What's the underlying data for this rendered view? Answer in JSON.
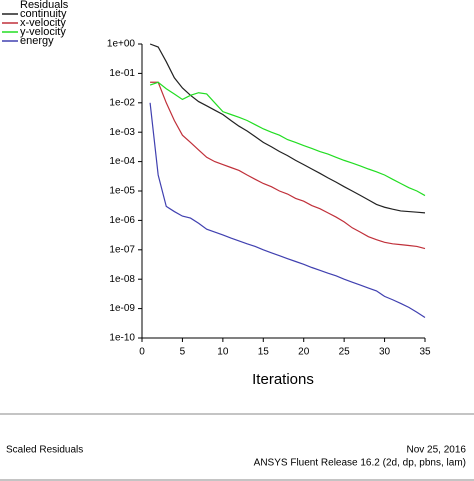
{
  "chart_data": {
    "type": "line",
    "legend_title": "Residuals",
    "legend": "upper left",
    "xlabel": "Iterations",
    "x": [
      1,
      2,
      3,
      4,
      5,
      6,
      7,
      8,
      9,
      10,
      11,
      12,
      13,
      14,
      15,
      16,
      17,
      18,
      19,
      20,
      21,
      22,
      23,
      24,
      25,
      26,
      27,
      28,
      29,
      30,
      31,
      32,
      33,
      34,
      35
    ],
    "xlim": [
      0,
      35
    ],
    "xticks": [
      0,
      5,
      10,
      15,
      20,
      25,
      30,
      35
    ],
    "ylog": true,
    "ylim": [
      1e-10,
      1
    ],
    "yticks": [
      {
        "value": 1e-10,
        "label": "1e-10"
      },
      {
        "value": 1e-09,
        "label": "1e-09"
      },
      {
        "value": 1e-08,
        "label": "1e-08"
      },
      {
        "value": 1e-07,
        "label": "1e-07"
      },
      {
        "value": 1e-06,
        "label": "1e-06"
      },
      {
        "value": 1e-05,
        "label": "1e-05"
      },
      {
        "value": 0.0001,
        "label": "1e-04"
      },
      {
        "value": 0.001,
        "label": "1e-03"
      },
      {
        "value": 0.01,
        "label": "1e-02"
      },
      {
        "value": 0.1,
        "label": "1e-01"
      },
      {
        "value": 1,
        "label": "1e+00"
      }
    ],
    "series": [
      {
        "name": "continuity",
        "color": "#222222",
        "values": [
          1,
          0.79,
          0.25,
          0.071,
          0.032,
          0.018,
          0.011,
          0.0079,
          0.0056,
          0.004,
          0.0025,
          0.0016,
          0.0011,
          0.00071,
          0.00045,
          0.00032,
          0.00022,
          0.00016,
          0.00011,
          7.9e-05,
          5.6e-05,
          4e-05,
          2.8e-05,
          2e-05,
          1.4e-05,
          1e-05,
          7.1e-06,
          5e-06,
          3.5e-06,
          2.8e-06,
          2.4e-06,
          2.1e-06,
          2e-06,
          1.9e-06,
          1.8e-06
        ]
      },
      {
        "name": "x-velocity",
        "color": "#c0303a",
        "values": [
          0.05,
          0.05,
          0.01,
          0.0025,
          0.00079,
          0.00045,
          0.00025,
          0.00014,
          0.0001,
          7.9e-05,
          6.3e-05,
          5e-05,
          3.5e-05,
          2.5e-05,
          1.8e-05,
          1.4e-05,
          1e-05,
          7.9e-06,
          5.6e-06,
          4.5e-06,
          3.2e-06,
          2.5e-06,
          1.8e-06,
          1.3e-06,
          8.9e-07,
          5.6e-07,
          4e-07,
          2.8e-07,
          2.2e-07,
          1.8e-07,
          1.6e-07,
          1.5e-07,
          1.4e-07,
          1.3e-07,
          1.1e-07
        ]
      },
      {
        "name": "y-velocity",
        "color": "#22dd22",
        "values": [
          0.04,
          0.05,
          0.03,
          0.02,
          0.013,
          0.018,
          0.022,
          0.02,
          0.01,
          0.005,
          0.004,
          0.0032,
          0.0025,
          0.0018,
          0.0013,
          0.001,
          0.00079,
          0.00056,
          0.00045,
          0.00035,
          0.00028,
          0.00022,
          0.00018,
          0.00014,
          0.00011,
          8.9e-05,
          7.1e-05,
          5.6e-05,
          4.5e-05,
          3.5e-05,
          2.5e-05,
          1.8e-05,
          1.3e-05,
          1e-05,
          7e-06
        ]
      },
      {
        "name": "energy",
        "color": "#4040b0",
        "values": [
          0.01,
          3.5e-05,
          3e-06,
          2e-06,
          1.4e-06,
          1.2e-06,
          8e-07,
          5e-07,
          4e-07,
          3.2e-07,
          2.5e-07,
          2e-07,
          1.6e-07,
          1.3e-07,
          1e-07,
          7.9e-08,
          6.3e-08,
          5e-08,
          4e-08,
          3.2e-08,
          2.5e-08,
          2e-08,
          1.6e-08,
          1.3e-08,
          1e-08,
          7.9e-09,
          6.3e-09,
          5e-09,
          4e-09,
          2.6e-09,
          2e-09,
          1.5e-09,
          1.1e-09,
          7.5e-10,
          5e-10
        ]
      }
    ]
  },
  "footer": {
    "left": "Scaled Residuals",
    "date": "Nov 25, 2016",
    "release": "ANSYS Fluent Release 16.2 (2d, dp, pbns, lam)"
  }
}
